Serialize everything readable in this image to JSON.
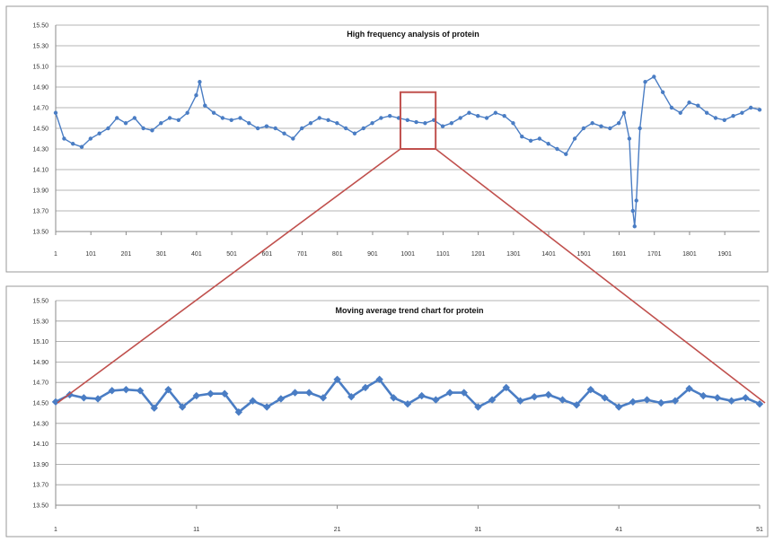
{
  "colors": {
    "series": "#4a7dc4",
    "zoom": "#c0504d",
    "grid": "#9c9c9c"
  },
  "chart_data": [
    {
      "type": "line",
      "title": "High frequency analysis of protein",
      "ylim": [
        13.5,
        15.5
      ],
      "yticks": [
        "15.50",
        "15.30",
        "15.10",
        "14.90",
        "14.70",
        "14.50",
        "14.30",
        "14.10",
        "13.90",
        "13.70",
        "13.50"
      ],
      "xticks": [
        "1",
        "101",
        "201",
        "301",
        "401",
        "501",
        "601",
        "701",
        "801",
        "901",
        "1001",
        "1101",
        "1201",
        "1301",
        "1401",
        "1501",
        "1601",
        "1701",
        "1801",
        "1901"
      ],
      "xlim": [
        1,
        2000
      ],
      "grid": true,
      "series": [
        {
          "style": "line-with-markers",
          "x": [
            1,
            25,
            50,
            75,
            100,
            125,
            150,
            175,
            200,
            225,
            250,
            275,
            300,
            325,
            350,
            375,
            400,
            410,
            425,
            450,
            475,
            500,
            525,
            550,
            575,
            600,
            625,
            650,
            675,
            700,
            725,
            750,
            775,
            800,
            825,
            850,
            875,
            900,
            925,
            950,
            975,
            1000,
            1025,
            1050,
            1075,
            1100,
            1125,
            1150,
            1175,
            1200,
            1225,
            1250,
            1275,
            1300,
            1325,
            1350,
            1375,
            1400,
            1425,
            1450,
            1475,
            1500,
            1525,
            1550,
            1575,
            1600,
            1615,
            1630,
            1640,
            1645,
            1650,
            1660,
            1675,
            1700,
            1725,
            1750,
            1775,
            1800,
            1825,
            1850,
            1875,
            1900,
            1925,
            1950,
            1975,
            2000
          ],
          "y": [
            14.65,
            14.4,
            14.35,
            14.32,
            14.4,
            14.45,
            14.5,
            14.6,
            14.55,
            14.6,
            14.5,
            14.48,
            14.55,
            14.6,
            14.58,
            14.65,
            14.82,
            14.95,
            14.72,
            14.65,
            14.6,
            14.58,
            14.6,
            14.55,
            14.5,
            14.52,
            14.5,
            14.45,
            14.4,
            14.5,
            14.55,
            14.6,
            14.58,
            14.55,
            14.5,
            14.45,
            14.5,
            14.55,
            14.6,
            14.62,
            14.6,
            14.58,
            14.56,
            14.55,
            14.58,
            14.52,
            14.55,
            14.6,
            14.65,
            14.62,
            14.6,
            14.65,
            14.62,
            14.55,
            14.42,
            14.38,
            14.4,
            14.35,
            14.3,
            14.25,
            14.4,
            14.5,
            14.55,
            14.52,
            14.5,
            14.55,
            14.65,
            14.4,
            13.7,
            13.55,
            13.8,
            14.5,
            14.95,
            15.0,
            14.85,
            14.7,
            14.65,
            14.75,
            14.72,
            14.65,
            14.6,
            14.58,
            14.62,
            14.65,
            14.7,
            14.68
          ]
        }
      ],
      "annotation": {
        "type": "zoom-box",
        "x_range": [
          980,
          1080
        ],
        "y_range": [
          14.3,
          14.85
        ]
      }
    },
    {
      "type": "line",
      "title": "Moving average trend chart for protein",
      "ylim": [
        13.5,
        15.5
      ],
      "yticks": [
        "15.50",
        "15.30",
        "15.10",
        "14.90",
        "14.70",
        "14.50",
        "14.30",
        "14.10",
        "13.90",
        "13.70",
        "13.50"
      ],
      "xticks": [
        "1",
        "11",
        "21",
        "31",
        "41",
        "51"
      ],
      "xlim": [
        1,
        51
      ],
      "grid": true,
      "series": [
        {
          "style": "line-with-diamond-markers",
          "x": [
            1,
            2,
            3,
            4,
            5,
            6,
            7,
            8,
            9,
            10,
            11,
            12,
            13,
            14,
            15,
            16,
            17,
            18,
            19,
            20,
            21,
            22,
            23,
            24,
            25,
            26,
            27,
            28,
            29,
            30,
            31,
            32,
            33,
            34,
            35,
            36,
            37,
            38,
            39,
            40,
            41,
            42,
            43,
            44,
            45,
            46,
            47,
            48,
            49,
            50,
            51
          ],
          "y": [
            14.51,
            14.58,
            14.55,
            14.54,
            14.62,
            14.63,
            14.62,
            14.45,
            14.63,
            14.46,
            14.57,
            14.59,
            14.59,
            14.41,
            14.52,
            14.46,
            14.54,
            14.6,
            14.6,
            14.55,
            14.73,
            14.56,
            14.65,
            14.73,
            14.55,
            14.49,
            14.57,
            14.53,
            14.6,
            14.6,
            14.46,
            14.53,
            14.65,
            14.52,
            14.56,
            14.58,
            14.53,
            14.48,
            14.63,
            14.55,
            14.46,
            14.51,
            14.53,
            14.5,
            14.52,
            14.64,
            14.57,
            14.55,
            14.52,
            14.55,
            14.49
          ]
        }
      ]
    }
  ]
}
